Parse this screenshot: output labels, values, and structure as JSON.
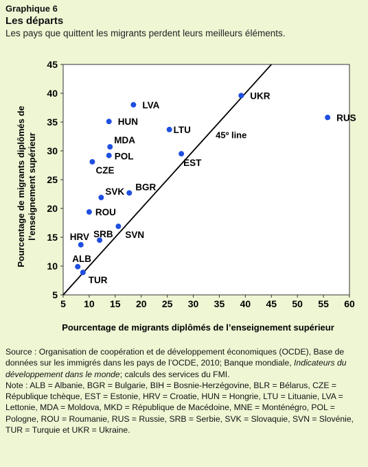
{
  "header": {
    "label": "Graphique 6",
    "title": "Les départs",
    "subtitle": "Les pays que quittent les migrants perdent leurs meilleurs éléments."
  },
  "chart_data": {
    "type": "scatter",
    "xlabel": "Pourcentage de migrants diplômés de l’enseignement supérieur",
    "ylabel": "Pourcentage de migrants diplômés de l’enseignement supérieur",
    "xlim": [
      5,
      60
    ],
    "ylim": [
      5,
      45
    ],
    "xticks": [
      5,
      10,
      15,
      20,
      25,
      30,
      35,
      40,
      45,
      50,
      55,
      60
    ],
    "yticks": [
      5,
      10,
      15,
      20,
      25,
      30,
      35,
      40,
      45
    ],
    "grid": false,
    "point_color": "#1f4fe0",
    "reference_line": {
      "label": "45º line",
      "slope": 1,
      "intercept": 0
    },
    "points": [
      {
        "label": "UKR",
        "x": 39.2,
        "y": 39.6
      },
      {
        "label": "RUS",
        "x": 55.8,
        "y": 35.8
      },
      {
        "label": "LVA",
        "x": 18.5,
        "y": 38.0
      },
      {
        "label": "HUN",
        "x": 13.8,
        "y": 35.1
      },
      {
        "label": "LTU",
        "x": 25.4,
        "y": 33.7
      },
      {
        "label": "MDA",
        "x": 14.0,
        "y": 30.7
      },
      {
        "label": "POL",
        "x": 13.8,
        "y": 29.2
      },
      {
        "label": "EST",
        "x": 27.7,
        "y": 29.5
      },
      {
        "label": "CZE",
        "x": 10.6,
        "y": 28.1
      },
      {
        "label": "BGR",
        "x": 17.7,
        "y": 22.7
      },
      {
        "label": "SVK",
        "x": 12.3,
        "y": 21.9
      },
      {
        "label": "ROU",
        "x": 10.0,
        "y": 19.4
      },
      {
        "label": "SVN",
        "x": 15.6,
        "y": 16.9
      },
      {
        "label": "SRB",
        "x": 12.0,
        "y": 14.5
      },
      {
        "label": "HRV",
        "x": 8.4,
        "y": 13.7
      },
      {
        "label": "ALB",
        "x": 7.8,
        "y": 9.9
      },
      {
        "label": "TUR",
        "x": 8.8,
        "y": 8.9
      }
    ]
  },
  "notes": {
    "source_prefix": "Source : Organisation de coopération et de développement économiques (OCDE), Base de données sur les immigrés dans les pays de l’OCDE, 2010; Banque mondiale, ",
    "source_italic": "Indicateurs du développement dans le monde",
    "source_suffix": "; calculs des services du FMI.",
    "note": "Note : ALB = Albanie, BGR = Bulgarie, BIH = Bosnie-Herzégovine, BLR = Bélarus, CZE = République tchèque, EST = Estonie, HRV = Croatie, HUN = Hongrie, LTU = Lituanie, LVA = Lettonie, MDA = Moldova, MKD = République de Macédoine, MNE = Monténégro, POL = Pologne, ROU = Roumanie, RUS = Russie, SRB = Serbie, SVK = Slovaquie, SVN = Slovénie, TUR = Turquie et UKR = Ukraine."
  }
}
